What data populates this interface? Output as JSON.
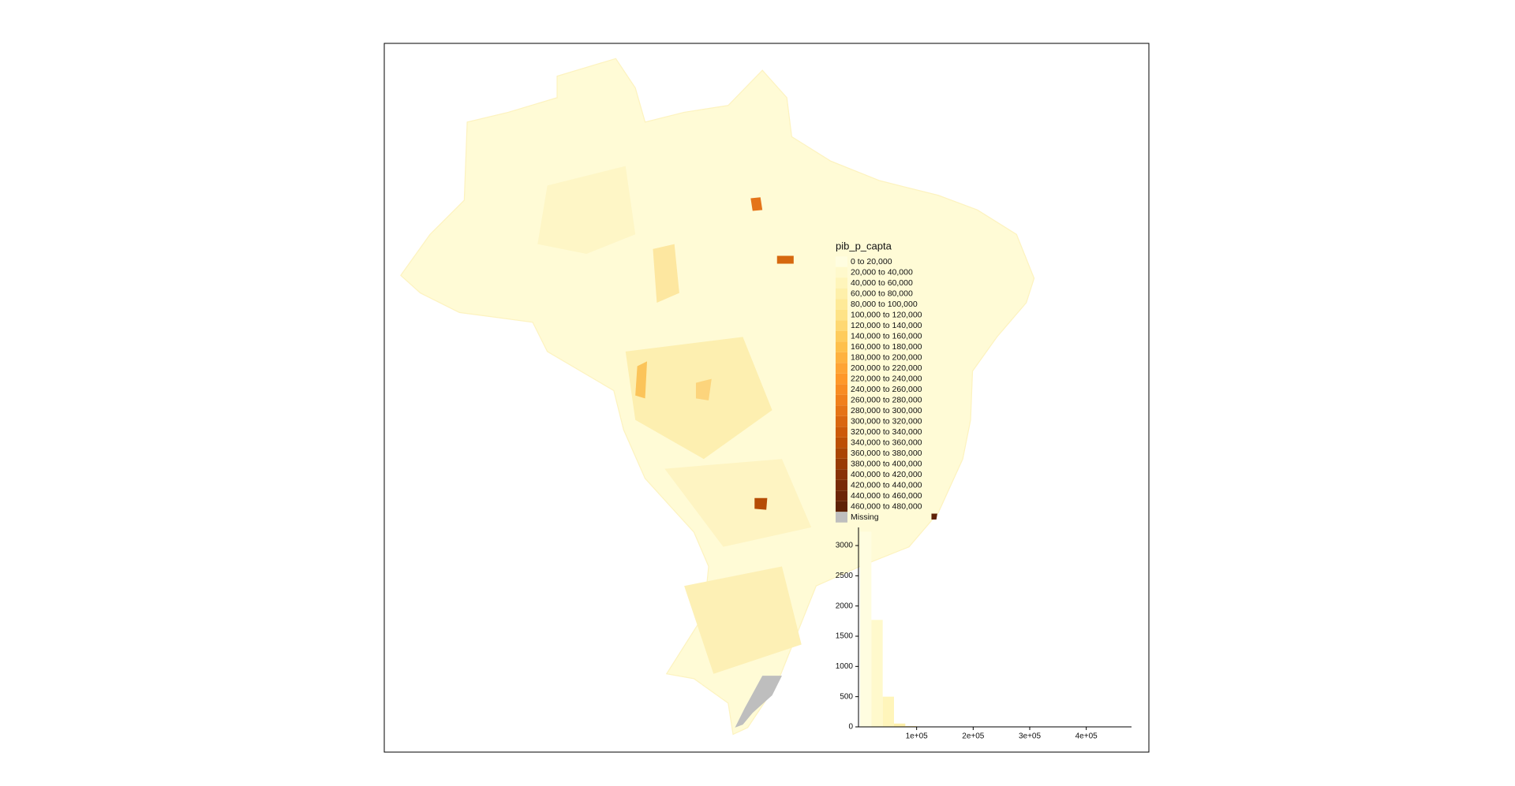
{
  "chart_data": {
    "type": "histogram",
    "legend": {
      "title": "pib_p_capta",
      "labels": [
        "0 to 20,000",
        "20,000 to 40,000",
        "40,000 to 60,000",
        "60,000 to 80,000",
        "80,000 to 100,000",
        "100,000 to 120,000",
        "120,000 to 140,000",
        "140,000 to 160,000",
        "160,000 to 180,000",
        "180,000 to 200,000",
        "200,000 to 220,000",
        "220,000 to 240,000",
        "240,000 to 260,000",
        "260,000 to 280,000",
        "280,000 to 300,000",
        "300,000 to 320,000",
        "320,000 to 340,000",
        "340,000 to 360,000",
        "360,000 to 380,000",
        "380,000 to 400,000",
        "400,000 to 420,000",
        "420,000 to 440,000",
        "440,000 to 460,000",
        "460,000 to 480,000",
        "Missing"
      ],
      "colors": [
        "#fffde0",
        "#fff9cc",
        "#fff5bb",
        "#fef0aa",
        "#feea98",
        "#fee387",
        "#fed872",
        "#fecc5c",
        "#fec04b",
        "#feb23f",
        "#fea434",
        "#fe9829",
        "#f88c22",
        "#f0801b",
        "#e57415",
        "#d9670f",
        "#cc5a08",
        "#bc5004",
        "#aa4603",
        "#983c04",
        "#883205",
        "#782a05",
        "#6c2506",
        "#5e2206",
        "#bebebe"
      ]
    },
    "bins": [
      0,
      20000,
      40000,
      60000,
      80000,
      100000,
      120000,
      140000,
      160000,
      180000,
      200000,
      220000,
      240000,
      260000,
      280000,
      300000,
      320000,
      340000,
      360000,
      380000,
      400000,
      420000,
      440000,
      460000,
      480000
    ],
    "values": [
      3230,
      1770,
      500,
      55,
      12,
      5,
      3,
      2,
      1,
      1,
      1,
      0,
      1,
      0,
      1,
      0,
      0,
      0,
      0,
      0,
      0,
      0,
      0,
      1
    ],
    "xlim": [
      0,
      480000
    ],
    "xticks": [
      {
        "value": 100000,
        "label": "1e+05"
      },
      {
        "value": 200000,
        "label": "2e+05"
      },
      {
        "value": 300000,
        "label": "3e+05"
      },
      {
        "value": 400000,
        "label": "4e+05"
      }
    ],
    "ylim": [
      0,
      3300
    ],
    "yticks": [
      0,
      500,
      1000,
      1500,
      2000,
      2500,
      3000
    ]
  }
}
